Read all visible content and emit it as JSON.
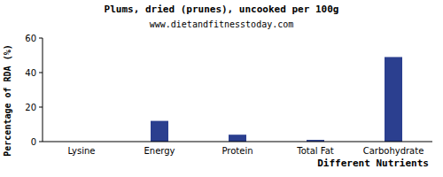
{
  "chart_data": {
    "type": "bar",
    "title": "Plums, dried (prunes), uncooked per 100g",
    "subtitle": "www.dietandfitnesstoday.com",
    "x_label": "Different Nutrients",
    "y_label": "Percentage of RDA (%)",
    "categories": [
      "Lysine",
      "Energy",
      "Protein",
      "Total Fat",
      "Carbohydrate"
    ],
    "values": [
      0,
      12,
      4,
      1,
      49
    ],
    "color": "#2b3f8f",
    "ylim": [
      0,
      60
    ],
    "yticks": [
      0,
      20,
      40,
      60
    ],
    "grid": false
  }
}
